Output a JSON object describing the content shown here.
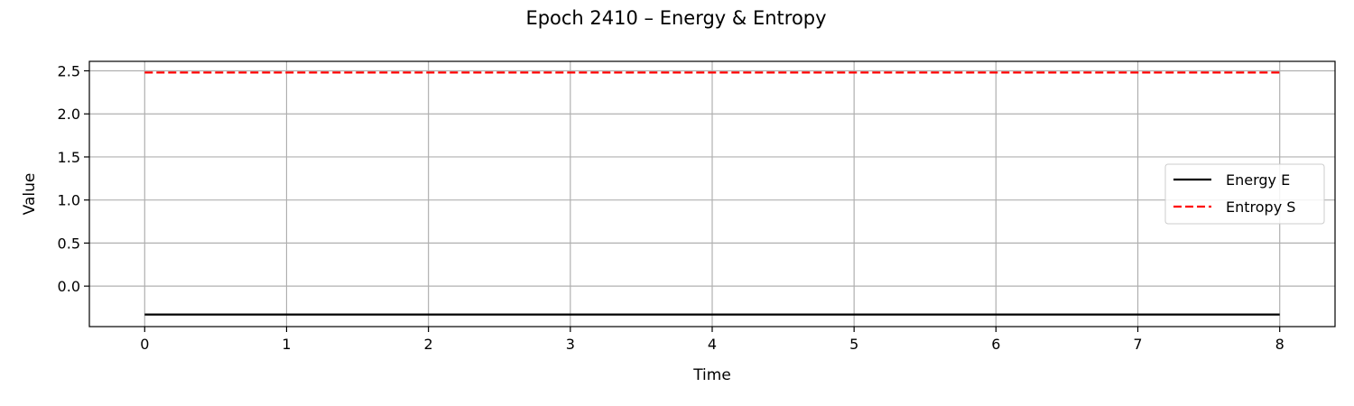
{
  "chart_data": {
    "type": "line",
    "title": "Epoch 2410 – Energy & Entropy",
    "xlabel": "Time",
    "ylabel": "Value",
    "xlim": [
      -0.39,
      8.39
    ],
    "ylim": [
      -0.47,
      2.61
    ],
    "xticks": [
      0,
      1,
      2,
      3,
      4,
      5,
      6,
      7,
      8
    ],
    "yticks": [
      0.0,
      0.5,
      1.0,
      1.5,
      2.0,
      2.5
    ],
    "ytick_labels": [
      "0.0",
      "0.5",
      "1.0",
      "1.5",
      "2.0",
      "2.5"
    ],
    "grid": true,
    "legend_position": "center-right",
    "x": [
      0,
      1,
      2,
      3,
      4,
      5,
      6,
      7,
      8
    ],
    "series": [
      {
        "name": "Energy E",
        "color": "#000000",
        "dash": "solid",
        "values": [
          -0.33,
          -0.33,
          -0.33,
          -0.33,
          -0.33,
          -0.33,
          -0.33,
          -0.33,
          -0.33
        ]
      },
      {
        "name": "Entropy S",
        "color": "#ff0000",
        "dash": "dashed",
        "values": [
          2.48,
          2.48,
          2.48,
          2.48,
          2.48,
          2.48,
          2.48,
          2.48,
          2.48
        ]
      }
    ]
  }
}
